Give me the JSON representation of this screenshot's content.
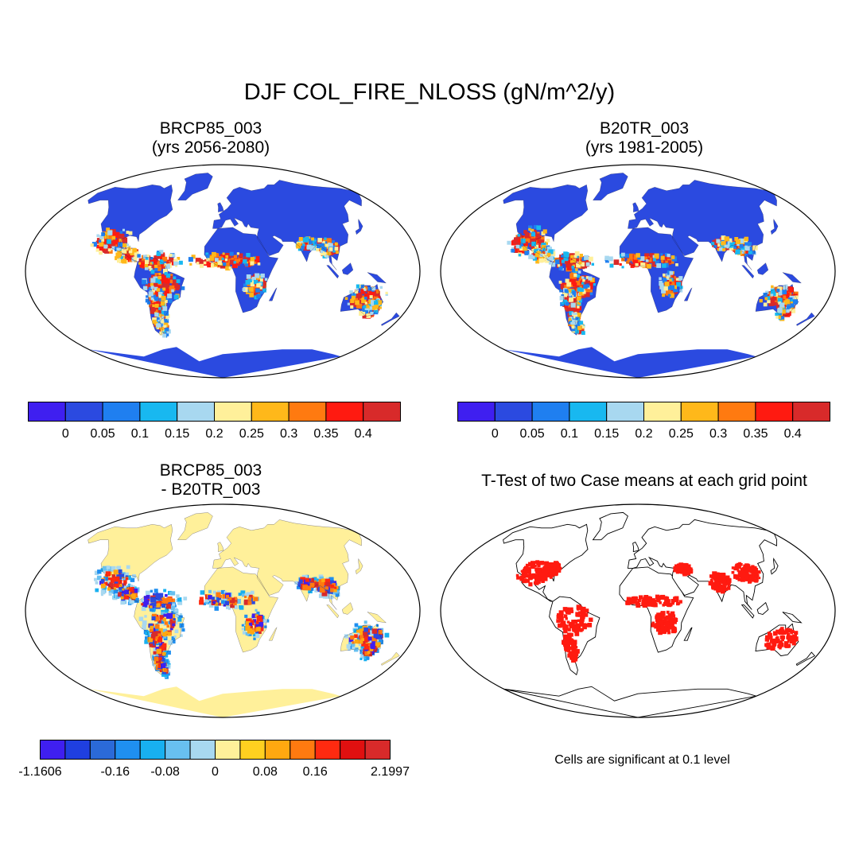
{
  "title": "DJF COL_FIRE_NLOSS (gN/m^2/y)",
  "panels": [
    {
      "id": "brcp",
      "title_line1": "BRCP85_003",
      "title_line2": "(yrs 2056-2080)",
      "kind": "field"
    },
    {
      "id": "b20tr",
      "title_line1": "B20TR_003",
      "title_line2": "(yrs 1981-2005)",
      "kind": "field"
    },
    {
      "id": "diff",
      "title_line1": "BRCP85_003",
      "title_line2": "- B20TR_003",
      "kind": "diff"
    },
    {
      "id": "ttest",
      "title_line1": "T-Test of two Case means at each grid point",
      "title_line2": "",
      "kind": "ttest"
    }
  ],
  "colorbar_abs": {
    "colors": [
      "#3f1ff0",
      "#2b4ae0",
      "#1f7ff0",
      "#18b8f0",
      "#a8d8f0",
      "#fff09a",
      "#ffb81a",
      "#ff7a10",
      "#ff1a10",
      "#d82a2a"
    ],
    "labels": [
      "0",
      "0.05",
      "0.1",
      "0.15",
      "0.2",
      "0.25",
      "0.3",
      "0.35",
      "0.4"
    ]
  },
  "colorbar_diff": {
    "colors": [
      "#3f1ff0",
      "#1f3fe0",
      "#2b6ad8",
      "#1f8ff0",
      "#18b0f0",
      "#68c0f0",
      "#a8d8f0",
      "#fff09a",
      "#ffd020",
      "#ffa810",
      "#ff7a10",
      "#ff2a10",
      "#e01010",
      "#d82a2a"
    ],
    "labels": [
      "-1.1606",
      "-0.16",
      "-0.08",
      "0",
      "0.08",
      "0.16",
      "2.1997"
    ],
    "label_positions": [
      0,
      3,
      5,
      7,
      9,
      11,
      14
    ]
  },
  "significance_note": "Cells are significant at 0.1 level",
  "colors": {
    "land_low": "#2b4ae0",
    "diff_base": "#fff09a",
    "significant": "#ff1a10"
  }
}
